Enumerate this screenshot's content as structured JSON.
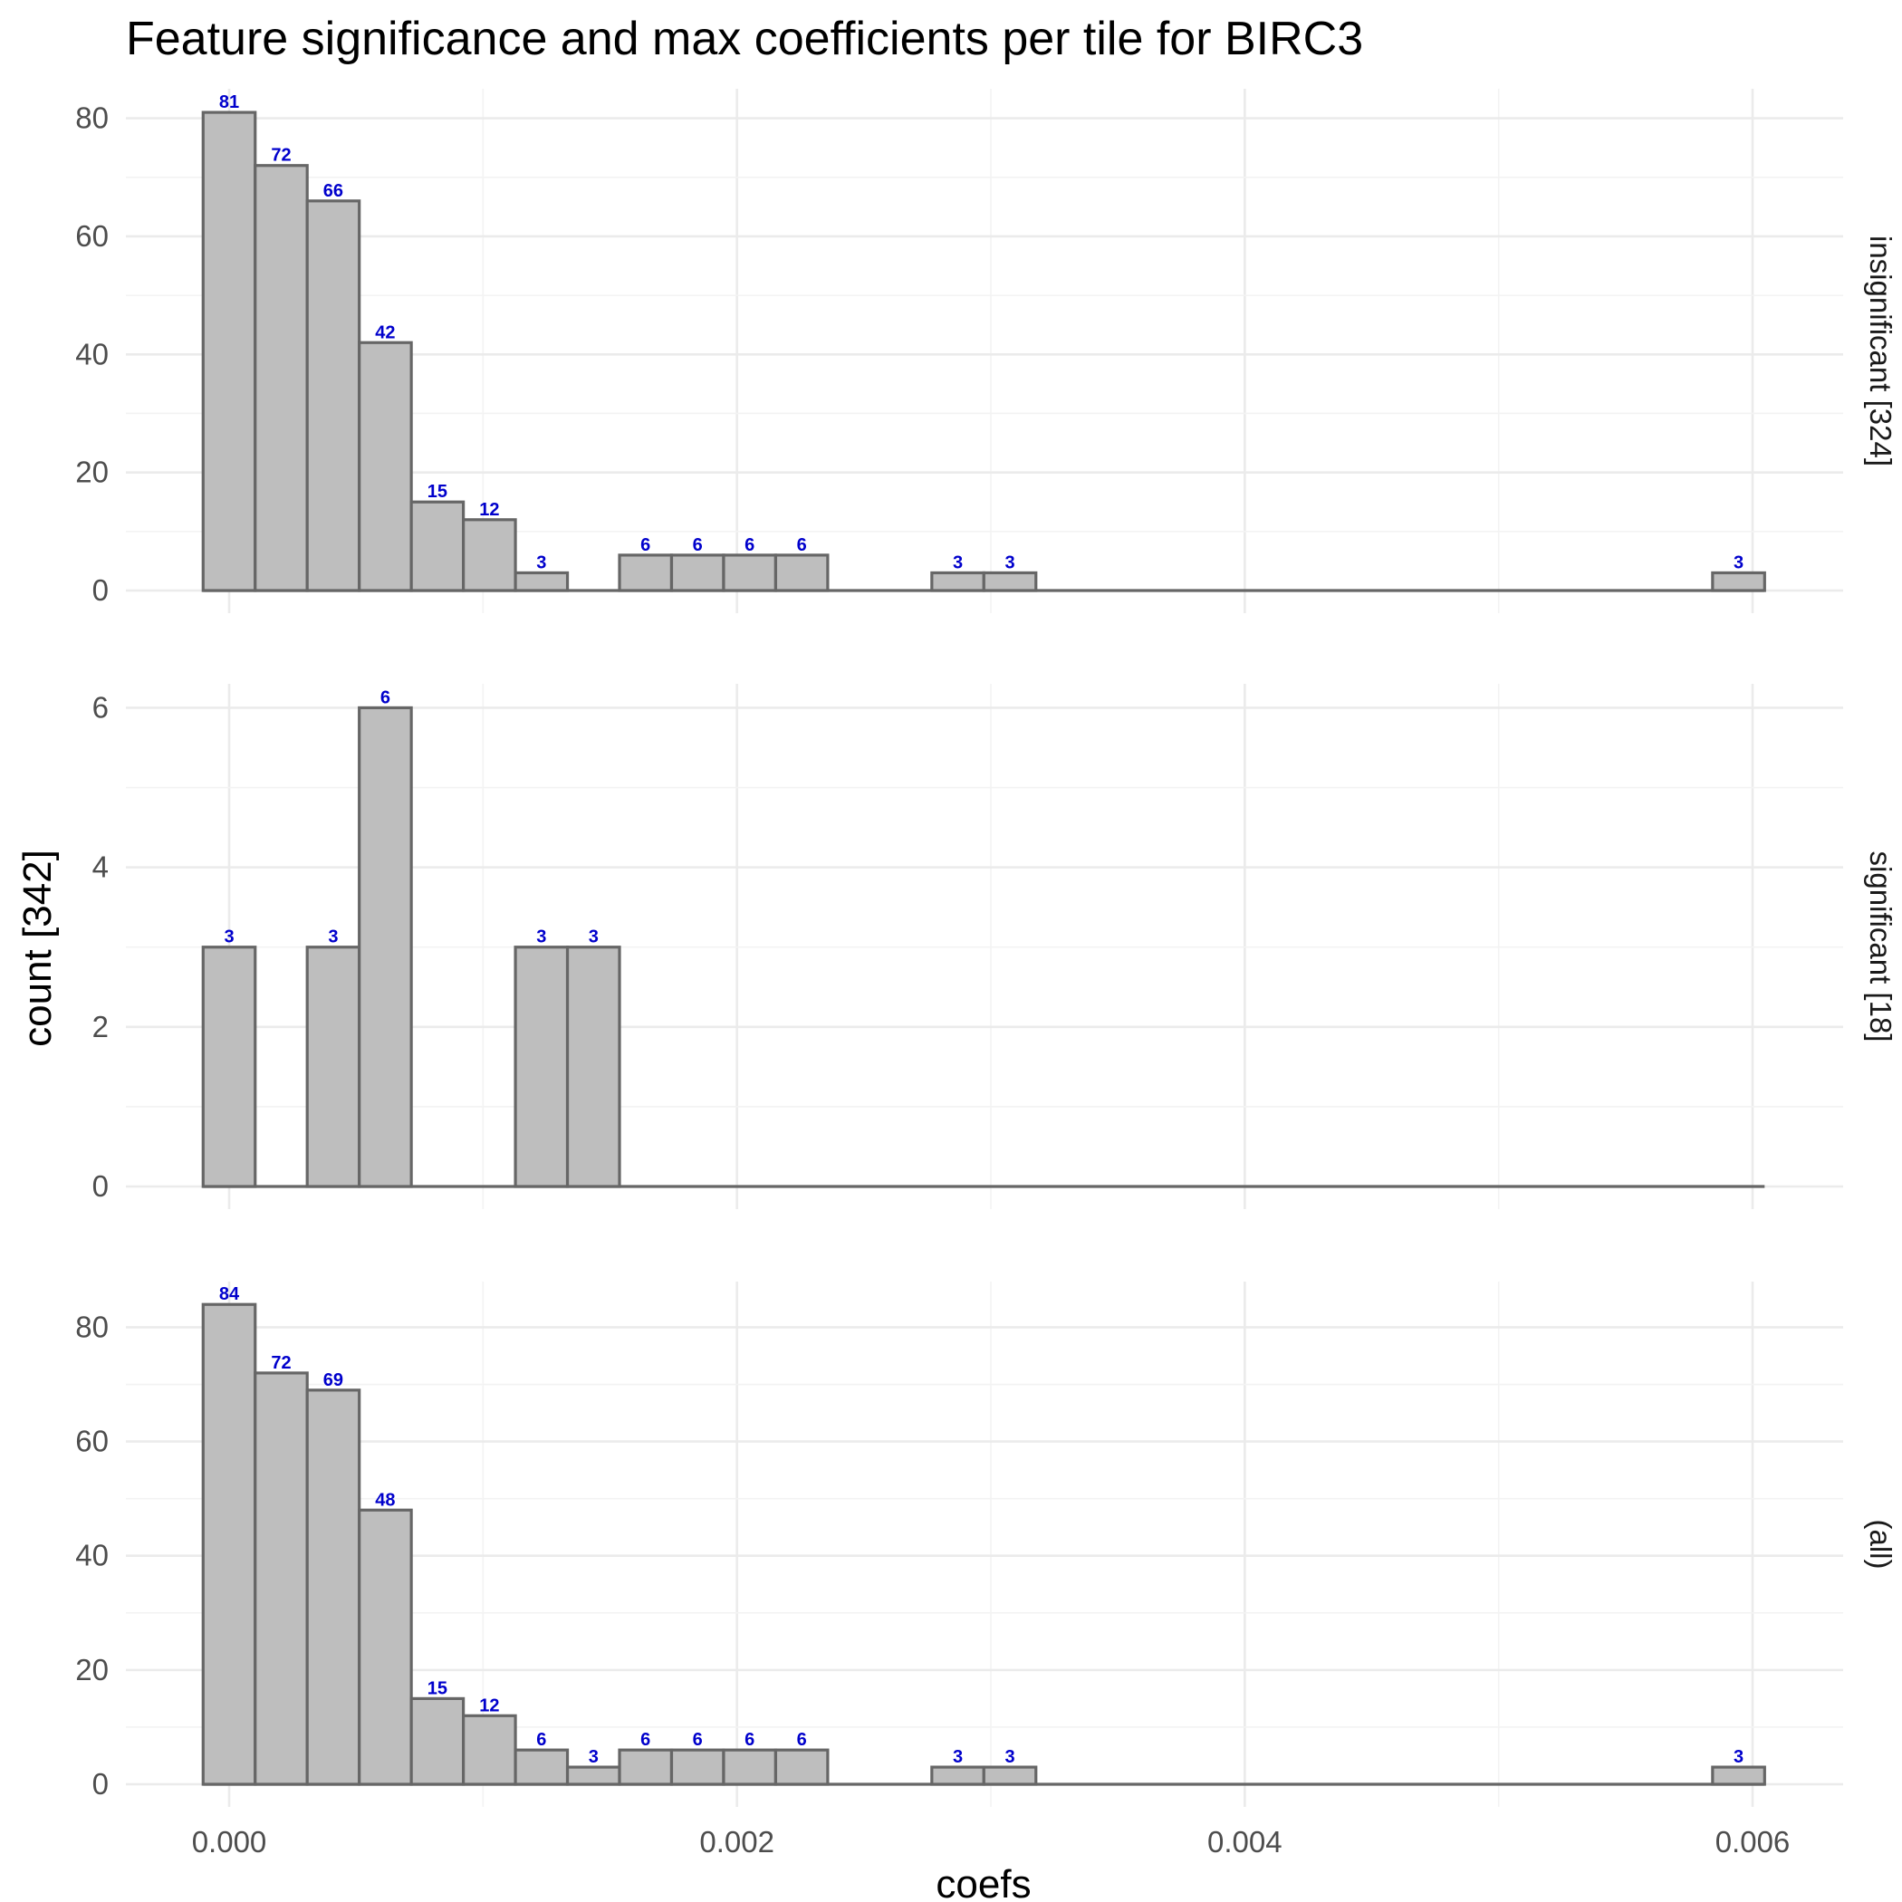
{
  "chart_data": {
    "type": "bar",
    "title": "Feature significance and max coefficients per tile for BIRC3",
    "xlabel": "coefs",
    "ylabel": "count [342]",
    "xlim": [
      -0.0004,
      0.0063
    ],
    "x_ticks": [
      0.0,
      0.002,
      0.004,
      0.006
    ],
    "x_tick_labels": [
      "0.000",
      "0.002",
      "0.004",
      "0.006"
    ],
    "bin_width": 0.000205,
    "bin_centers": [
      0.0,
      0.000205,
      0.00041,
      0.000615,
      0.00082,
      0.001025,
      0.00123,
      0.001435,
      0.00164,
      0.001845,
      0.00205,
      0.002255,
      0.00246,
      0.002665,
      0.00287,
      0.003075,
      0.00328,
      0.003485,
      0.00369,
      0.003895,
      0.0041,
      0.004305,
      0.00451,
      0.004715,
      0.00492,
      0.005125,
      0.00533,
      0.005535,
      0.00574,
      0.005945
    ],
    "panels": [
      {
        "strip": "insignificant [324]",
        "ylim": [
          0,
          85
        ],
        "y_ticks": [
          0,
          20,
          40,
          60,
          80
        ],
        "values": [
          81,
          72,
          66,
          42,
          15,
          12,
          3,
          0,
          6,
          6,
          6,
          6,
          0,
          0,
          3,
          3,
          0,
          0,
          0,
          0,
          0,
          0,
          0,
          0,
          0,
          0,
          0,
          0,
          0,
          3
        ]
      },
      {
        "strip": "significant [18]",
        "ylim": [
          0,
          6.3
        ],
        "y_ticks": [
          0,
          2,
          4,
          6
        ],
        "values": [
          3,
          0,
          3,
          6,
          0,
          0,
          3,
          3,
          0,
          0,
          0,
          0,
          0,
          0,
          0,
          0,
          0,
          0,
          0,
          0,
          0,
          0,
          0,
          0,
          0,
          0,
          0,
          0,
          0,
          0
        ]
      },
      {
        "strip": "(all)",
        "ylim": [
          0,
          88
        ],
        "y_ticks": [
          0,
          20,
          40,
          60,
          80
        ],
        "values": [
          84,
          72,
          69,
          48,
          15,
          12,
          6,
          3,
          6,
          6,
          6,
          6,
          0,
          0,
          3,
          3,
          0,
          0,
          0,
          0,
          0,
          0,
          0,
          0,
          0,
          0,
          0,
          0,
          0,
          3
        ]
      }
    ]
  }
}
